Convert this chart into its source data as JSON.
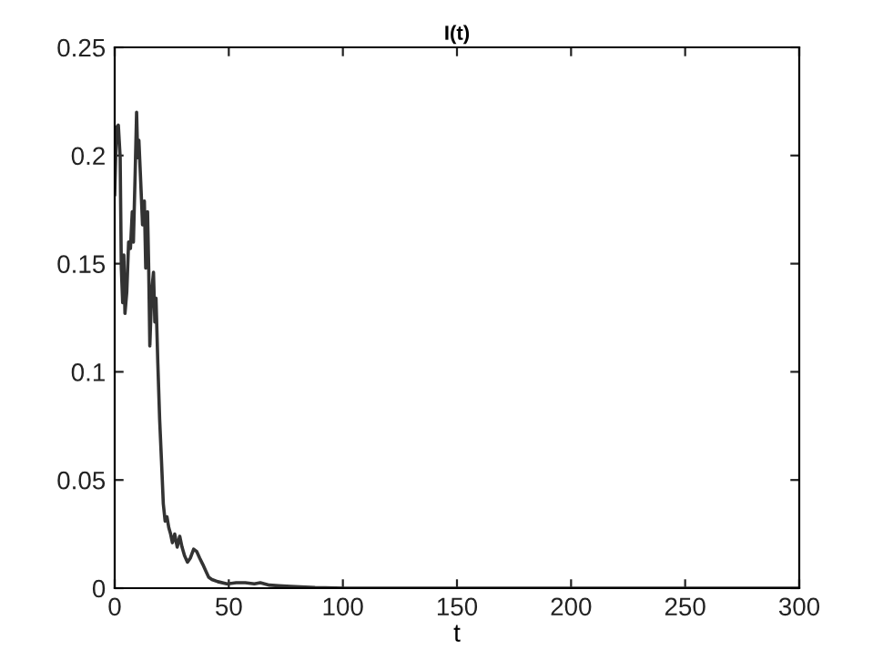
{
  "chart_data": {
    "type": "line",
    "title": "I(t)",
    "xlabel": "t",
    "x": [
      0,
      0.8,
      1.6,
      2.4,
      2.9,
      3.5,
      4,
      4.5,
      5.3,
      6.1,
      6.9,
      7.7,
      8.2,
      9,
      9.6,
      10.1,
      10.6,
      11.4,
      12.2,
      13,
      13.6,
      14.4,
      14.9,
      15.4,
      16.2,
      17,
      17.6,
      18.1,
      18.9,
      19.7,
      20.5,
      21.3,
      22.1,
      22.9,
      23.7,
      24.5,
      25.3,
      26.3,
      27.4,
      28.5,
      29.5,
      30.6,
      31.9,
      33.2,
      34.6,
      35.9,
      37.2,
      38.6,
      39.9,
      41.2,
      42.6,
      45.2,
      49.2,
      53.2,
      57.2,
      61.2,
      63.8,
      67.8,
      71.8,
      77.1,
      87.8,
      101,
      135.6,
      300
    ],
    "series": [
      {
        "color": "#333333",
        "values": [
          0.182,
          0.213,
          0.214,
          0.199,
          0.148,
          0.132,
          0.154,
          0.127,
          0.137,
          0.16,
          0.157,
          0.174,
          0.16,
          0.193,
          0.22,
          0.199,
          0.207,
          0.188,
          0.168,
          0.179,
          0.148,
          0.174,
          0.148,
          0.112,
          0.137,
          0.146,
          0.123,
          0.134,
          0.104,
          0.078,
          0.059,
          0.039,
          0.031,
          0.033,
          0.028,
          0.025,
          0.021,
          0.025,
          0.019,
          0.024,
          0.019,
          0.015,
          0.012,
          0.014,
          0.018,
          0.017,
          0.014,
          0.011,
          0.008,
          0.005,
          0.004,
          0.003,
          0.002,
          0.0025,
          0.0025,
          0.002,
          0.0025,
          0.0014,
          0.0011,
          0.0008,
          0.0003,
          0,
          0,
          0
        ]
      }
    ],
    "xlim": [
      0,
      300
    ],
    "xticks": [
      0,
      50,
      100,
      150,
      200,
      250,
      300
    ],
    "ylim": [
      0,
      0.25
    ],
    "yticks": [
      0,
      0.05,
      0.1,
      0.15,
      0.2,
      0.25
    ],
    "grid": false,
    "legend": false,
    "marker": "none",
    "line_style": "solid"
  }
}
